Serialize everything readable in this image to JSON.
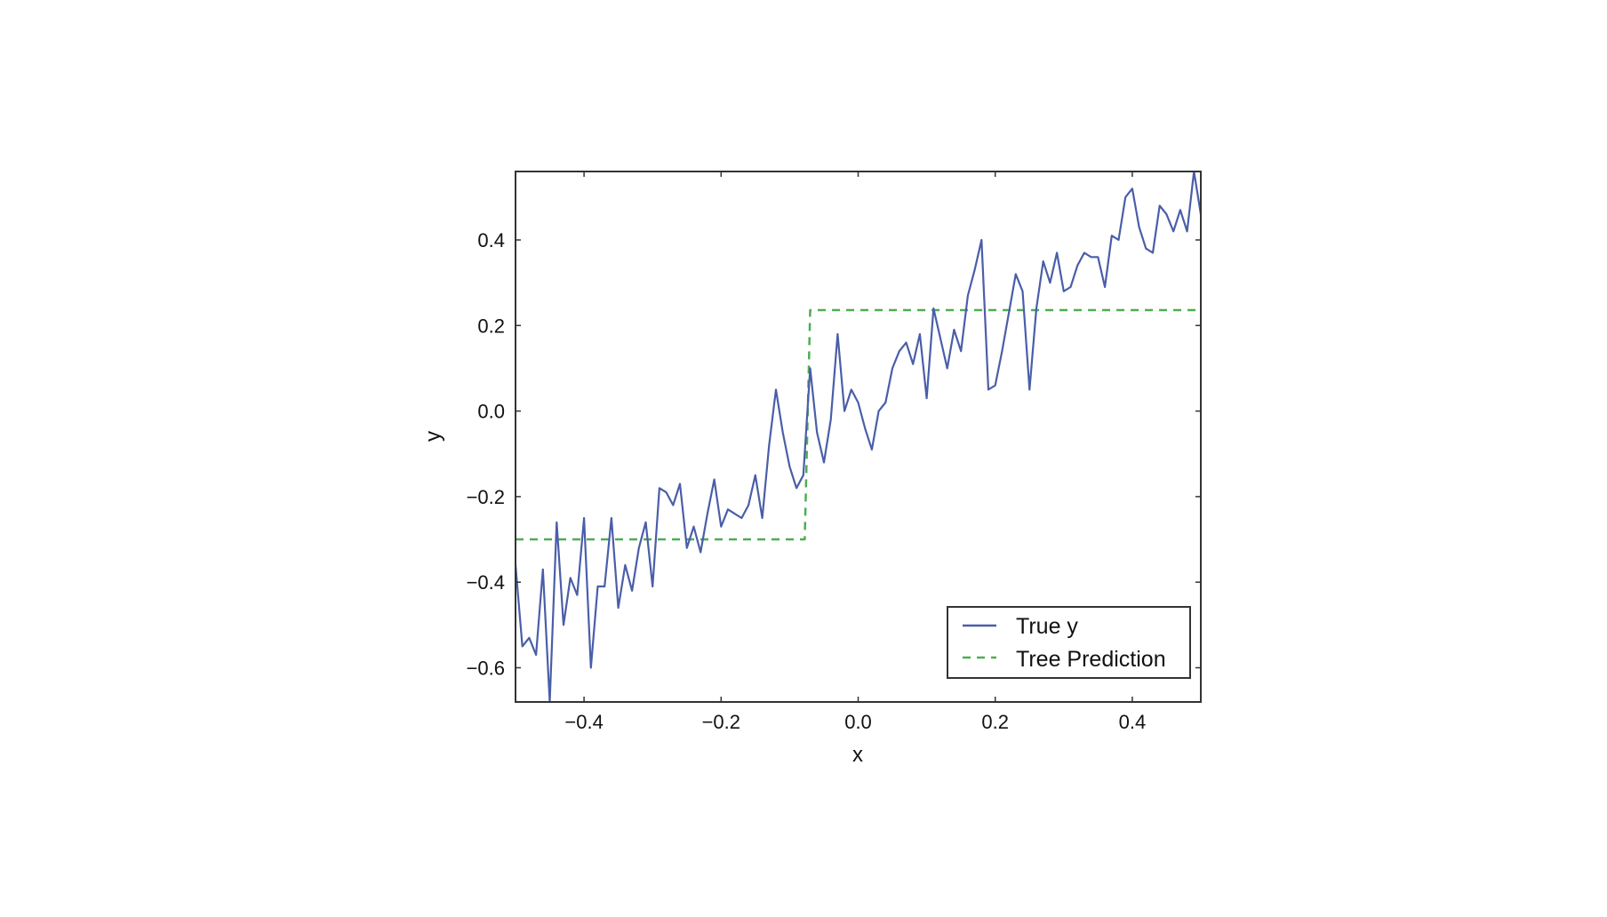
{
  "chart_data": {
    "type": "line",
    "title": "",
    "xlabel": "x",
    "ylabel": "y",
    "xlim": [
      -0.5,
      0.5
    ],
    "ylim": [
      -0.68,
      0.56
    ],
    "xticks": [
      -0.4,
      -0.2,
      0.0,
      0.2,
      0.4
    ],
    "xtick_labels": [
      "−0.4",
      "−0.2",
      "0.0",
      "0.2",
      "0.4"
    ],
    "yticks": [
      -0.6,
      -0.4,
      -0.2,
      0.0,
      0.2,
      0.4
    ],
    "ytick_labels": [
      "−0.6",
      "−0.4",
      "−0.2",
      "0.0",
      "0.2",
      "0.4"
    ],
    "grid": false,
    "legend_position": "bottom-right",
    "series": [
      {
        "name": "True y",
        "style": "solid",
        "color": "#4a5ea8",
        "x": [
          -0.5,
          -0.49,
          -0.48,
          -0.47,
          -0.46,
          -0.45,
          -0.44,
          -0.43,
          -0.42,
          -0.41,
          -0.4,
          -0.39,
          -0.38,
          -0.37,
          -0.36,
          -0.35,
          -0.34,
          -0.33,
          -0.32,
          -0.31,
          -0.3,
          -0.29,
          -0.28,
          -0.27,
          -0.26,
          -0.25,
          -0.24,
          -0.23,
          -0.22,
          -0.21,
          -0.2,
          -0.19,
          -0.18,
          -0.17,
          -0.16,
          -0.15,
          -0.14,
          -0.13,
          -0.12,
          -0.11,
          -0.1,
          -0.09,
          -0.08,
          -0.07,
          -0.06,
          -0.05,
          -0.04,
          -0.03,
          -0.02,
          -0.01,
          0.0,
          0.01,
          0.02,
          0.03,
          0.04,
          0.05,
          0.06,
          0.07,
          0.08,
          0.09,
          0.1,
          0.11,
          0.12,
          0.13,
          0.14,
          0.15,
          0.16,
          0.17,
          0.18,
          0.19,
          0.2,
          0.21,
          0.22,
          0.23,
          0.24,
          0.25,
          0.26,
          0.27,
          0.28,
          0.29,
          0.3,
          0.31,
          0.32,
          0.33,
          0.34,
          0.35,
          0.36,
          0.37,
          0.38,
          0.39,
          0.4,
          0.41,
          0.42,
          0.43,
          0.44,
          0.45,
          0.46,
          0.47,
          0.48,
          0.49,
          0.5
        ],
        "y": [
          -0.36,
          -0.55,
          -0.53,
          -0.57,
          -0.37,
          -0.68,
          -0.26,
          -0.5,
          -0.39,
          -0.43,
          -0.25,
          -0.6,
          -0.41,
          -0.41,
          -0.25,
          -0.46,
          -0.36,
          -0.42,
          -0.32,
          -0.26,
          -0.41,
          -0.18,
          -0.19,
          -0.22,
          -0.17,
          -0.32,
          -0.27,
          -0.33,
          -0.24,
          -0.16,
          -0.27,
          -0.23,
          -0.24,
          -0.25,
          -0.22,
          -0.15,
          -0.25,
          -0.08,
          0.05,
          -0.05,
          -0.13,
          -0.18,
          -0.15,
          0.1,
          -0.05,
          -0.12,
          -0.02,
          0.18,
          0.0,
          0.05,
          0.02,
          -0.04,
          -0.09,
          0.0,
          0.02,
          0.1,
          0.14,
          0.16,
          0.11,
          0.18,
          0.03,
          0.24,
          0.17,
          0.1,
          0.19,
          0.14,
          0.27,
          0.33,
          0.4,
          0.05,
          0.06,
          0.14,
          0.23,
          0.32,
          0.28,
          0.05,
          0.24,
          0.35,
          0.3,
          0.37,
          0.28,
          0.29,
          0.34,
          0.37,
          0.36,
          0.36,
          0.29,
          0.41,
          0.4,
          0.5,
          0.52,
          0.43,
          0.38,
          0.37,
          0.48,
          0.46,
          0.42,
          0.47,
          0.42,
          0.56,
          0.46
        ]
      },
      {
        "name": "Tree Prediction",
        "style": "dashed",
        "color": "#4caf50",
        "x": [
          -0.5,
          -0.078,
          -0.078,
          -0.07,
          -0.07,
          0.5
        ],
        "y": [
          -0.3,
          -0.3,
          -0.3,
          0.236,
          0.236,
          0.236
        ]
      }
    ]
  }
}
